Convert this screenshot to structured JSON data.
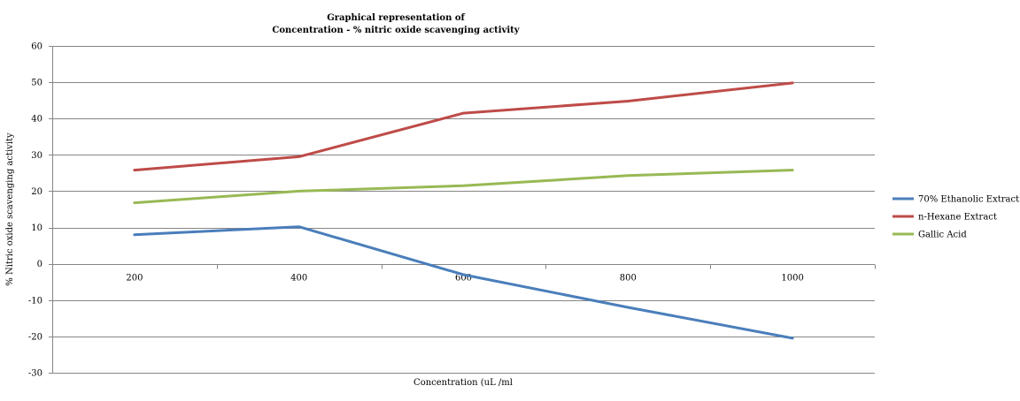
{
  "chart_data": {
    "type": "line",
    "title": "Graphical representation of",
    "subtitle": "Concentration - % nitric oxide scavenging activity",
    "xlabel": "Concentration (uL /ml",
    "ylabel": "% Nitric oxide scavenging activity",
    "categories": [
      "200",
      "400",
      "600",
      "800",
      "1000"
    ],
    "ylim": [
      -30,
      60
    ],
    "yticks": [
      60,
      50,
      40,
      30,
      20,
      10,
      0,
      -10,
      -20,
      -30
    ],
    "grid": true,
    "legend_position": "right",
    "series": [
      {
        "name": "70% Ethanolic Extract",
        "color": "#4a7ebb",
        "values": [
          8.0,
          10.2,
          -3.0,
          -12.0,
          -20.5
        ]
      },
      {
        "name": "n-Hexane Extract",
        "color": "#be4b48",
        "values": [
          25.8,
          29.5,
          41.5,
          44.8,
          49.8
        ]
      },
      {
        "name": "Gallic Acid",
        "color": "#98b954",
        "values": [
          16.8,
          20.0,
          21.5,
          24.3,
          25.8
        ]
      }
    ]
  }
}
